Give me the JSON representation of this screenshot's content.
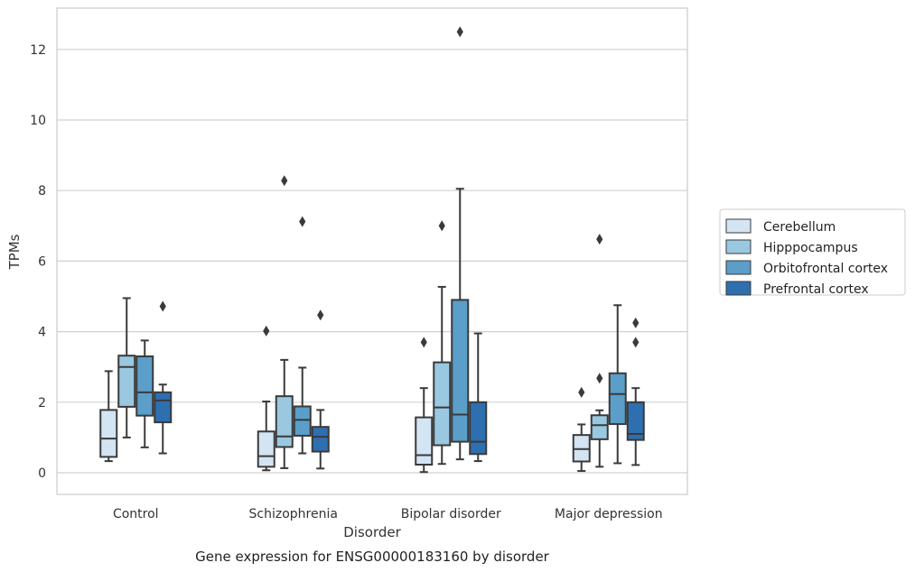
{
  "chart_data": {
    "type": "box",
    "xlabel": "Disorder",
    "ylabel": "TPMs",
    "caption": "Gene expression for ENSG00000183160 by disorder",
    "ylim": [
      -0.6,
      13.2
    ],
    "yticks": [
      0,
      2,
      4,
      6,
      8,
      10,
      12
    ],
    "grid": "horizontal",
    "legend_position": "right",
    "categories": [
      "Control",
      "Schizophrenia",
      "Bipolar disorder",
      "Major depression"
    ],
    "series": [
      {
        "name": "Cerebellum",
        "color": "#d3e4f3",
        "boxes": [
          {
            "whislo": 0.33,
            "q1": 0.45,
            "med": 0.97,
            "q3": 1.78,
            "whishi": 2.88,
            "fliers": []
          },
          {
            "whislo": 0.07,
            "q1": 0.17,
            "med": 0.47,
            "q3": 1.17,
            "whishi": 2.02,
            "fliers": [
              4.02
            ]
          },
          {
            "whislo": 0.02,
            "q1": 0.23,
            "med": 0.5,
            "q3": 1.57,
            "whishi": 2.4,
            "fliers": [
              3.7
            ]
          },
          {
            "whislo": 0.05,
            "q1": 0.32,
            "med": 0.67,
            "q3": 1.07,
            "whishi": 1.37,
            "fliers": [
              2.28
            ]
          }
        ]
      },
      {
        "name": "Hipppocampus",
        "color": "#9ac8e0",
        "boxes": [
          {
            "whislo": 1.0,
            "q1": 1.87,
            "med": 3.0,
            "q3": 3.32,
            "whishi": 4.95,
            "fliers": []
          },
          {
            "whislo": 0.13,
            "q1": 0.73,
            "med": 1.03,
            "q3": 2.17,
            "whishi": 3.2,
            "fliers": [
              8.28
            ]
          },
          {
            "whislo": 0.25,
            "q1": 0.78,
            "med": 1.85,
            "q3": 3.13,
            "whishi": 5.27,
            "fliers": [
              7.0
            ]
          },
          {
            "whislo": 0.17,
            "q1": 0.95,
            "med": 1.35,
            "q3": 1.63,
            "whishi": 1.77,
            "fliers": [
              2.68,
              6.62
            ]
          }
        ]
      },
      {
        "name": "Orbitofrontal cortex",
        "color": "#5a9ec9",
        "boxes": [
          {
            "whislo": 0.72,
            "q1": 1.62,
            "med": 2.28,
            "q3": 3.3,
            "whishi": 3.75,
            "fliers": []
          },
          {
            "whislo": 0.55,
            "q1": 1.05,
            "med": 1.5,
            "q3": 1.88,
            "whishi": 2.98,
            "fliers": [
              7.12
            ]
          },
          {
            "whislo": 0.38,
            "q1": 0.88,
            "med": 1.65,
            "q3": 4.9,
            "whishi": 8.05,
            "fliers": [
              12.5
            ]
          },
          {
            "whislo": 0.27,
            "q1": 1.38,
            "med": 2.23,
            "q3": 2.82,
            "whishi": 4.75,
            "fliers": []
          }
        ]
      },
      {
        "name": "Prefrontal cortex",
        "color": "#2e6fb0",
        "boxes": [
          {
            "whislo": 0.55,
            "q1": 1.43,
            "med": 2.05,
            "q3": 2.28,
            "whishi": 2.5,
            "fliers": [
              4.72
            ]
          },
          {
            "whislo": 0.12,
            "q1": 0.6,
            "med": 1.02,
            "q3": 1.3,
            "whishi": 1.78,
            "fliers": [
              4.47
            ]
          },
          {
            "whislo": 0.33,
            "q1": 0.53,
            "med": 0.88,
            "q3": 2.0,
            "whishi": 3.95,
            "fliers": []
          },
          {
            "whislo": 0.22,
            "q1": 0.93,
            "med": 1.1,
            "q3": 2.0,
            "whishi": 2.4,
            "fliers": [
              3.7,
              4.25
            ]
          }
        ]
      }
    ]
  }
}
